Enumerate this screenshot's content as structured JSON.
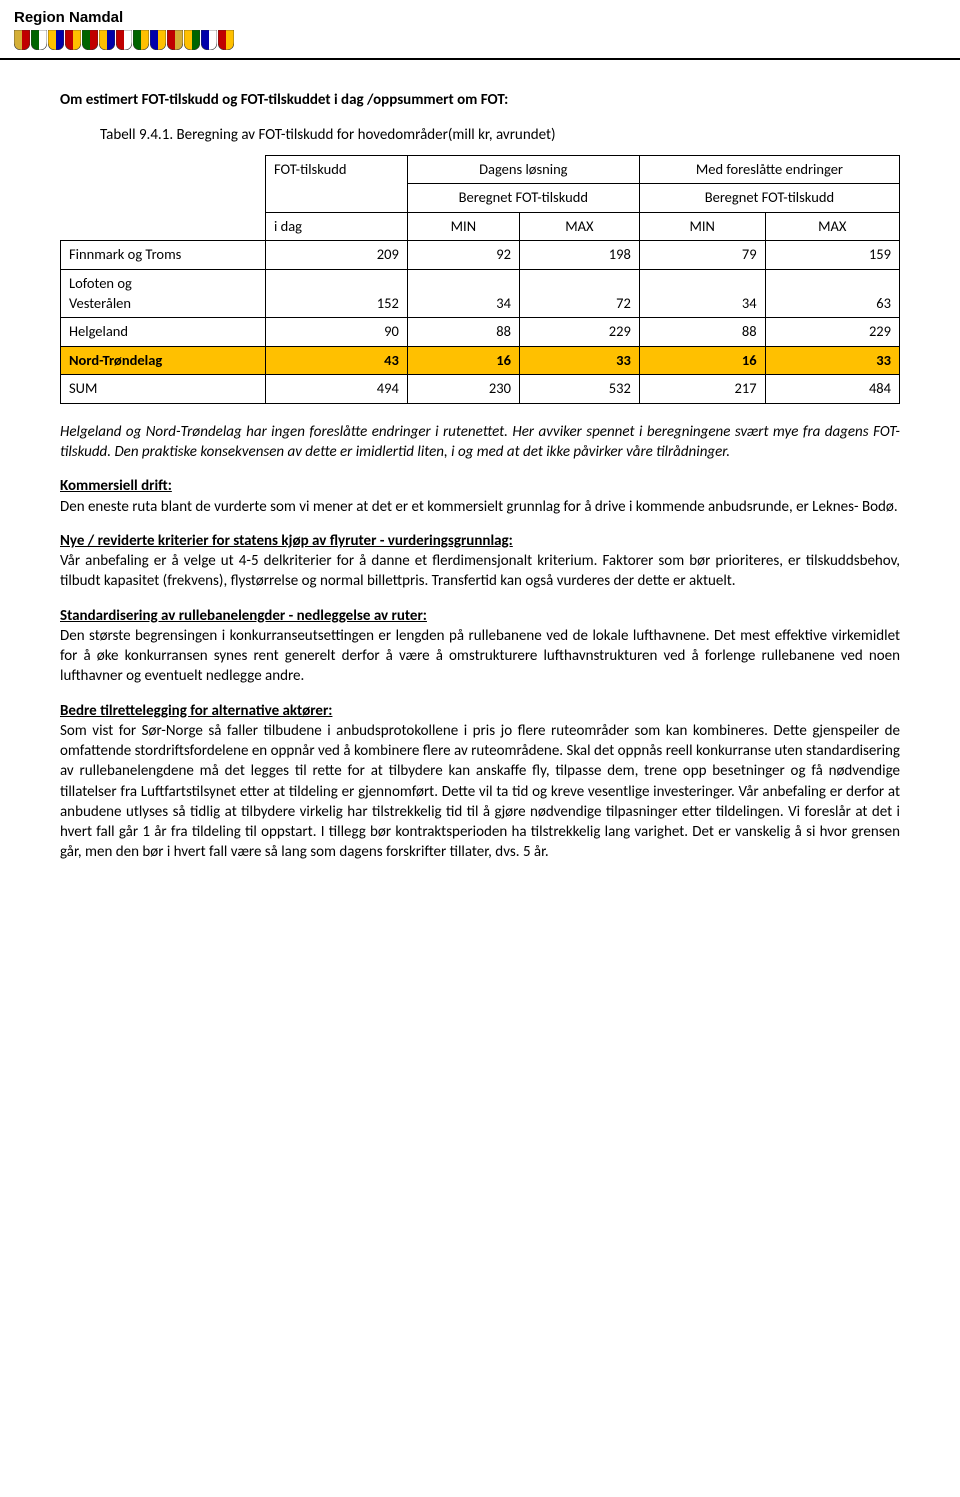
{
  "header": {
    "brand": "Region Namdal",
    "shield_colors": [
      [
        "#d4af37",
        "#c00000"
      ],
      [
        "#006400",
        "#ffffff"
      ],
      [
        "#ffc000",
        "#0000aa"
      ],
      [
        "#c00000",
        "#ffc000"
      ],
      [
        "#006400",
        "#c00000"
      ],
      [
        "#ffc000",
        "#0000aa"
      ],
      [
        "#c00000",
        "#ffffff"
      ],
      [
        "#006400",
        "#ffc000"
      ],
      [
        "#0000aa",
        "#ffc000"
      ],
      [
        "#c00000",
        "#d4af37"
      ],
      [
        "#ffc000",
        "#006400"
      ],
      [
        "#0000aa",
        "#ffffff"
      ],
      [
        "#c00000",
        "#ffc000"
      ]
    ],
    "rule_color": "#000000"
  },
  "title": "Om estimert FOT-tilskudd og FOT-tilskuddet i dag /oppsummert om FOT:",
  "table_caption": "Tabell 9.4.1. Beregning av FOT-tilskudd for hovedområder(mill kr, avrundet)",
  "table": {
    "col_group_left": "",
    "col_group_dagens": "Dagens løsning",
    "col_group_med": "Med foreslåtte endringer",
    "row2_left_top": "FOT-tilskudd",
    "row2_left_bottom": "i dag",
    "row2_mid": "Beregnet FOT-tilskudd",
    "row2_right": "Beregnet FOT-tilskudd",
    "min": "MIN",
    "max": "MAX",
    "rows": [
      {
        "label": "Finnmark og Troms",
        "idag": "209",
        "d_min": "92",
        "d_max": "198",
        "m_min": "79",
        "m_max": "159",
        "hl": false
      },
      {
        "label": "Lofoten og\nVesterålen",
        "idag": "152",
        "d_min": "34",
        "d_max": "72",
        "m_min": "34",
        "m_max": "63",
        "hl": false
      },
      {
        "label": "Helgeland",
        "idag": "90",
        "d_min": "88",
        "d_max": "229",
        "m_min": "88",
        "m_max": "229",
        "hl": false
      },
      {
        "label": "Nord-Trøndelag",
        "idag": "43",
        "d_min": "16",
        "d_max": "33",
        "m_min": "16",
        "m_max": "33",
        "hl": true
      },
      {
        "label": "SUM",
        "idag": "494",
        "d_min": "230",
        "d_max": "532",
        "m_min": "217",
        "m_max": "484",
        "hl": false
      }
    ],
    "highlight_color": "#ffc000",
    "border_color": "#000000"
  },
  "italic_note": "Helgeland og Nord-Trøndelag har ingen foreslåtte endringer i rutenettet. Her avviker spennet i beregningene svært mye fra dagens FOT-tilskudd. Den praktiske konsekvensen av dette er imidlertid liten, i og med at det ikke påvirker våre tilrådninger.",
  "sections": [
    {
      "head": "Kommersiell drift:",
      "body": "Den eneste ruta blant de vurderte som vi mener at det er et kommersielt grunnlag for å drive i kommende anbudsrunde, er Leknes- Bodø."
    },
    {
      "head": "Nye / reviderte kriterier for statens kjøp av flyruter - vurderingsgrunnlag:",
      "body": "Vår anbefaling er å velge ut 4-5 delkriterier for å danne et flerdimensjonalt kriterium. Faktorer som bør prioriteres, er tilskuddsbehov, tilbudt kapasitet (frekvens), flystørrelse og normal billettpris. Transfertid kan også vurderes der dette er aktuelt."
    },
    {
      "head": "Standardisering av rullebanelengder - nedleggelse av ruter:",
      "body": "Den største begrensingen i konkurranseutsettingen er lengden på rullebanene ved de lokale lufthavnene. Det mest effektive virkemidlet for å øke konkurransen synes rent generelt derfor å være å omstrukturere lufthavnstrukturen ved å forlenge rullebanene ved noen lufthavner og eventuelt nedlegge andre."
    },
    {
      "head": "Bedre tilrettelegging for alternative aktører:",
      "body": "Som vist for Sør-Norge så faller tilbudene i anbudsprotokollene i pris jo flere ruteområder som kan kombineres. Dette gjenspeiler de omfattende stordriftsfordelene en oppnår ved å kombinere flere av ruteområdene. Skal det oppnås reell konkurranse uten standardisering av rullebanelengdene må det legges til rette for at tilbydere kan anskaffe fly, tilpasse dem, trene opp besetninger og få nødvendige tillatelser fra Luftfartstilsynet etter at tildeling er gjennomført. Dette vil ta tid og kreve vesentlige investeringer. Vår anbefaling er derfor at anbudene utlyses så tidlig at tilbydere virkelig har tilstrekkelig tid til å gjøre nødvendige tilpasninger etter tildelingen. Vi foreslår at det i hvert fall går 1 år fra tildeling til oppstart. I tillegg bør kontraktsperioden ha tilstrekkelig lang varighet. Det er vanskelig å si hvor grensen går, men den bør i hvert fall være så lang som dagens forskrifter tillater, dvs. 5 år."
    }
  ]
}
